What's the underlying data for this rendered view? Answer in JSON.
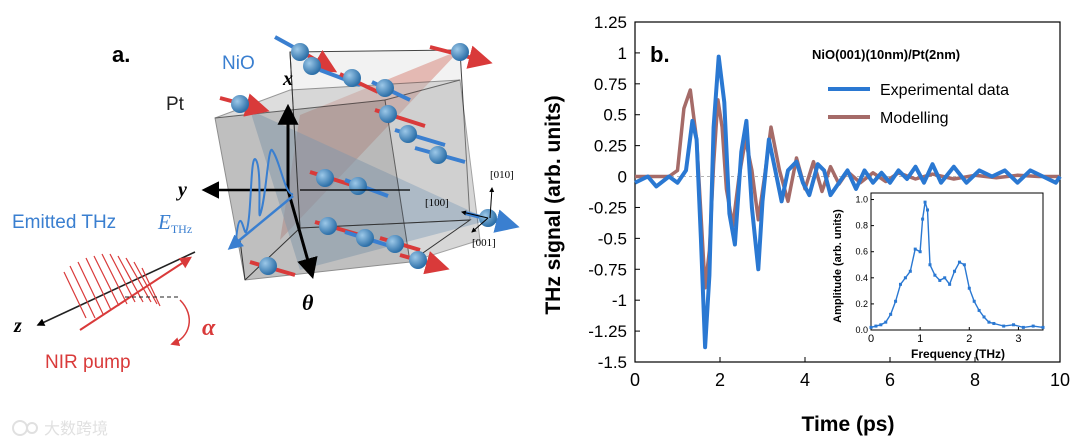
{
  "panel_a": {
    "label": "a.",
    "nio": "NiO",
    "pt": "Pt",
    "axis_x": "x",
    "axis_y": "y",
    "axis_z": "z",
    "theta": "θ",
    "emitted": "Emitted THz",
    "ethz_main": "E",
    "ethz_sub": "THz",
    "nir": "NIR pump",
    "alpha": "α",
    "dir_010": "[010]",
    "dir_100": "[100]",
    "dir_001": "[001]",
    "watermark": "大数跨境",
    "colors": {
      "blue": "#3a7fd0",
      "red": "#d93a3a",
      "gray": "#9e9e9e"
    }
  },
  "chart_data": {
    "type": "line",
    "label": "b.",
    "title": "NiO(001)(10nm)/Pt(2nm)",
    "xlabel": "Time (ps)",
    "ylabel": "THz signal (arb. units)",
    "xlim": [
      0,
      10
    ],
    "ylim": [
      -1.5,
      1.25
    ],
    "xticks": [
      0,
      2,
      4,
      6,
      8,
      10
    ],
    "xtick_labels": [
      "0",
      "2",
      "4",
      "6",
      "8",
      "10"
    ],
    "yticks": [
      1.25,
      1,
      0.75,
      0.5,
      0.25,
      0,
      -0.25,
      -0.5,
      -0.75,
      -1,
      -1.25,
      -1.5
    ],
    "ytick_labels": [
      "1.25",
      "1",
      "0.75",
      "0.5",
      "0.25",
      "0",
      "-0.25",
      "-0.5",
      "-0.75",
      "-1",
      "-1.25",
      "-1.5"
    ],
    "legend_position": "top-right",
    "series": [
      {
        "name": "Experimental data",
        "color": "#2a78d2",
        "x": [
          0,
          0.3,
          0.5,
          0.8,
          1.0,
          1.2,
          1.35,
          1.45,
          1.55,
          1.65,
          1.75,
          1.85,
          1.97,
          2.1,
          2.22,
          2.35,
          2.5,
          2.62,
          2.75,
          2.9,
          3.0,
          3.15,
          3.3,
          3.45,
          3.6,
          3.8,
          3.95,
          4.1,
          4.3,
          4.45,
          4.6,
          4.8,
          5.0,
          5.2,
          5.4,
          5.6,
          5.8,
          6.0,
          6.2,
          6.4,
          6.6,
          6.8,
          7.0,
          7.2,
          7.5,
          7.8,
          8.1,
          8.4,
          8.7,
          9.0,
          9.3,
          9.6,
          9.9,
          10
        ],
        "y": [
          -0.05,
          0.0,
          -0.08,
          0.0,
          -0.05,
          0.05,
          0.45,
          0.3,
          -0.5,
          -1.38,
          -0.8,
          0.4,
          0.97,
          0.6,
          -0.3,
          -0.55,
          0.2,
          0.45,
          -0.25,
          -0.75,
          -0.2,
          0.3,
          0.05,
          -0.2,
          0.05,
          0.12,
          -0.05,
          -0.15,
          0.1,
          0.05,
          -0.15,
          -0.05,
          0.05,
          -0.1,
          0.05,
          -0.05,
          0.03,
          -0.05,
          0.05,
          -0.02,
          0.08,
          -0.05,
          0.1,
          -0.05,
          0.08,
          -0.05,
          0.05,
          0.0,
          0.05,
          -0.05,
          0.05,
          0.0,
          -0.05,
          0.0
        ]
      },
      {
        "name": "Modelling",
        "color": "#a56b68",
        "x": [
          0,
          0.5,
          0.8,
          1.0,
          1.15,
          1.3,
          1.45,
          1.55,
          1.65,
          1.75,
          1.85,
          1.95,
          2.05,
          2.15,
          2.3,
          2.45,
          2.6,
          2.75,
          2.9,
          3.05,
          3.2,
          3.4,
          3.6,
          3.8,
          4.0,
          4.2,
          4.4,
          4.6,
          4.8,
          5.0,
          5.3,
          5.6,
          5.9,
          6.2,
          6.6,
          7.0,
          7.5,
          8.0,
          8.5,
          9.0,
          9.5,
          10
        ],
        "y": [
          0,
          0,
          0,
          0.05,
          0.55,
          0.7,
          0.3,
          -0.3,
          -0.9,
          -0.6,
          0.1,
          0.62,
          0.4,
          -0.1,
          -0.4,
          0.0,
          0.3,
          0.05,
          -0.35,
          0.0,
          0.4,
          0.05,
          -0.2,
          0.15,
          -0.1,
          0.12,
          -0.12,
          0.08,
          -0.06,
          0.04,
          -0.05,
          0.03,
          -0.04,
          0.03,
          -0.02,
          0.02,
          -0.02,
          0.01,
          -0.01,
          0.01,
          0,
          0
        ]
      }
    ],
    "inset": {
      "type": "line",
      "xlabel": "Frequency (THz)",
      "ylabel": "Amplitude (arb. units)",
      "xlim": [
        0,
        3.5
      ],
      "ylim": [
        0,
        1.05
      ],
      "xticks": [
        0,
        1,
        2,
        3
      ],
      "xtick_labels": [
        "0",
        "1",
        "2",
        "3"
      ],
      "yticks": [
        0,
        0.2,
        0.4,
        0.6,
        0.8,
        1.0
      ],
      "ytick_labels": [
        "0.0",
        "0.2",
        "0.4",
        "0.6",
        "0.8",
        "1.0"
      ],
      "color": "#2a78d2",
      "x": [
        0,
        0.1,
        0.2,
        0.3,
        0.4,
        0.5,
        0.6,
        0.7,
        0.8,
        0.9,
        1.0,
        1.05,
        1.1,
        1.15,
        1.2,
        1.3,
        1.4,
        1.5,
        1.6,
        1.7,
        1.8,
        1.9,
        2.0,
        2.1,
        2.2,
        2.3,
        2.4,
        2.5,
        2.7,
        2.9,
        3.1,
        3.3,
        3.5
      ],
      "y": [
        0.02,
        0.03,
        0.04,
        0.06,
        0.12,
        0.22,
        0.35,
        0.4,
        0.45,
        0.62,
        0.6,
        0.85,
        0.98,
        0.92,
        0.5,
        0.42,
        0.38,
        0.4,
        0.35,
        0.45,
        0.52,
        0.5,
        0.32,
        0.22,
        0.15,
        0.1,
        0.06,
        0.05,
        0.03,
        0.04,
        0.02,
        0.03,
        0.02
      ]
    }
  }
}
